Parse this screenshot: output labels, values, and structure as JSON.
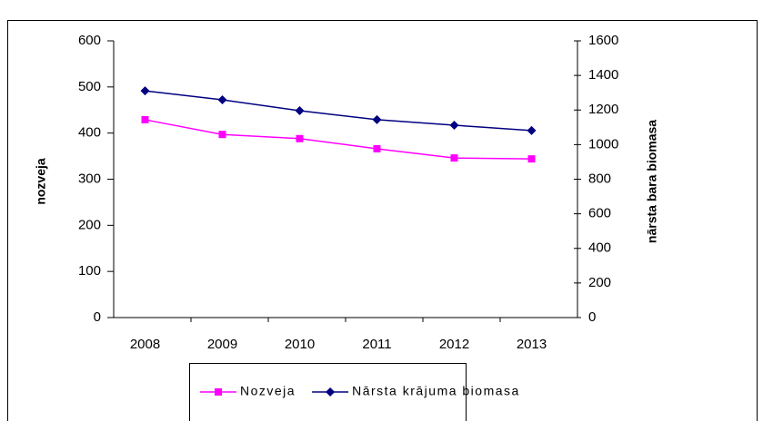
{
  "chart_data": {
    "type": "line",
    "categories": [
      "2008",
      "2009",
      "2010",
      "2011",
      "2012",
      "2013"
    ],
    "series": [
      {
        "name": "Nozveja",
        "color": "#ff00ff",
        "marker": "square",
        "values": [
          429,
          397,
          388,
          366,
          346,
          344
        ]
      },
      {
        "name": "Nārsta krājuma biomasa",
        "color": "#000080",
        "marker": "diamond",
        "axis": "y2",
        "values": [
          1311,
          1259,
          1196,
          1144,
          1112,
          1081
        ]
      }
    ],
    "ylabel": "nozveja",
    "y2label": "nārsta bara biomasa",
    "ylim": [
      0,
      600
    ],
    "yticks": [
      0,
      100,
      200,
      300,
      400,
      500,
      600
    ],
    "y2lim": [
      0,
      1600
    ],
    "y2ticks": [
      0,
      200,
      400,
      600,
      800,
      1000,
      1200,
      1400,
      1600
    ],
    "legend": "bottom"
  }
}
